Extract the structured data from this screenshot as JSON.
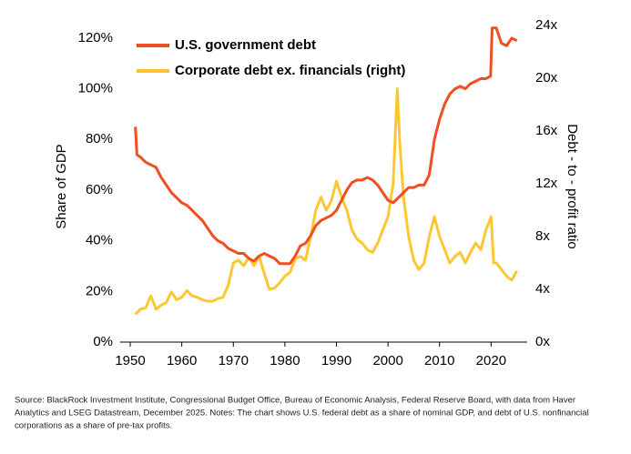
{
  "chart_data": {
    "type": "line",
    "y_label": "Share of GDP",
    "y2_label": "Debt - to - profit ratio",
    "note": [
      "Source: BlackRock Investment Institute, Congressional Budget Office, Bureau of Economic Analysis, Federal Reserve Board, with data from Haver",
      "Analytics and LSEG Datastream, December 2025. Notes: The chart shows U.S. federal debt as a share of nominal GDP, and debt of U.S. nonfinancial",
      "corporations as a share of pre-tax profits."
    ],
    "xlim": [
      1948,
      2027
    ],
    "xticks": [
      1950,
      1960,
      1970,
      1980,
      1990,
      2000,
      2010,
      2020
    ],
    "ylim": [
      0,
      125
    ],
    "yticks": [
      {
        "value": 0,
        "label": "0%"
      },
      {
        "value": 20,
        "label": "20%"
      },
      {
        "value": 40,
        "label": "40%"
      },
      {
        "value": 60,
        "label": "60%"
      },
      {
        "value": 80,
        "label": "80%"
      },
      {
        "value": 100,
        "label": "100%"
      },
      {
        "value": 120,
        "label": "120%"
      }
    ],
    "y2lim": [
      0,
      24
    ],
    "y2ticks": [
      {
        "value": 0,
        "label": "0x"
      },
      {
        "value": 4,
        "label": "4x"
      },
      {
        "value": 8,
        "label": "8x"
      },
      {
        "value": 12,
        "label": "12x"
      },
      {
        "value": 16,
        "label": "16x"
      },
      {
        "value": 20,
        "label": "20x"
      },
      {
        "value": 24,
        "label": "24x"
      }
    ],
    "legend": "upper left",
    "series": [
      {
        "name": "U.S. government debt",
        "color": "#f04e23",
        "x": [
          1951,
          1951.3,
          1952,
          1953,
          1954,
          1955,
          1956,
          1957,
          1958,
          1959,
          1960,
          1961,
          1962,
          1963,
          1964,
          1965,
          1966,
          1967,
          1968,
          1969,
          1970,
          1971,
          1972,
          1973,
          1974,
          1975,
          1976,
          1977,
          1978,
          1979,
          1980,
          1981,
          1982,
          1983,
          1984,
          1985,
          1986,
          1987,
          1988,
          1989,
          1990,
          1991,
          1992,
          1993,
          1994,
          1995,
          1996,
          1997,
          1998,
          1999,
          2000,
          2001,
          2002,
          2003,
          2004,
          2005,
          2006,
          2007,
          2008,
          2009,
          2010,
          2011,
          2012,
          2013,
          2014,
          2015,
          2016,
          2017,
          2018,
          2019,
          2019.9,
          2020.2,
          2021,
          2022,
          2023,
          2024,
          2025
        ],
        "values": [
          85,
          74,
          73,
          71,
          70,
          69,
          65,
          62,
          59,
          57,
          55,
          54,
          52,
          50,
          48,
          45,
          42,
          40,
          39,
          37,
          36,
          35,
          35,
          33,
          32,
          34,
          35,
          34,
          33,
          31,
          31,
          31,
          34,
          38,
          39,
          42,
          46,
          48,
          49,
          50,
          52,
          56,
          60,
          63,
          64,
          64,
          65,
          64,
          62,
          59,
          56,
          55,
          57,
          59,
          61,
          61,
          62,
          62,
          66,
          80,
          88,
          94,
          98,
          100,
          101,
          100,
          102,
          103,
          104,
          104,
          105,
          124,
          124,
          118,
          117,
          120,
          119
        ]
      },
      {
        "name": "Corporate debt ex. financials (right)",
        "color": "#fdc733",
        "axis": "y2",
        "x": [
          1951,
          1952,
          1953,
          1954,
          1955,
          1956,
          1957,
          1958,
          1959,
          1960,
          1961,
          1962,
          1963,
          1964,
          1965,
          1966,
          1967,
          1968,
          1969,
          1970,
          1971,
          1972,
          1973,
          1974,
          1975,
          1976,
          1977,
          1978,
          1979,
          1980,
          1981,
          1982,
          1983,
          1984,
          1985,
          1986,
          1987,
          1988,
          1989,
          1990,
          1991,
          1992,
          1993,
          1994,
          1995,
          1996,
          1997,
          1998,
          1999,
          2000,
          2001,
          2001.8,
          2002.3,
          2003,
          2004,
          2005,
          2006,
          2007,
          2008,
          2009,
          2010,
          2011,
          2012,
          2013,
          2014,
          2015,
          2016,
          2017,
          2018,
          2019,
          2020,
          2020.5,
          2021,
          2022,
          2023,
          2024,
          2025
        ],
        "values": [
          2.1,
          2.5,
          2.6,
          3.5,
          2.5,
          2.8,
          3.0,
          3.8,
          3.2,
          3.4,
          3.9,
          3.5,
          3.4,
          3.2,
          3.1,
          3.1,
          3.3,
          3.4,
          4.3,
          6.0,
          6.2,
          5.8,
          6.4,
          5.8,
          6.5,
          5.2,
          4.0,
          4.1,
          4.5,
          5.0,
          5.3,
          6.3,
          6.5,
          6.2,
          8.0,
          10.0,
          11.0,
          10.0,
          10.7,
          12.2,
          11.0,
          10.0,
          8.5,
          7.8,
          7.5,
          7.0,
          6.8,
          7.5,
          8.5,
          9.5,
          12.0,
          19.2,
          15.0,
          11.0,
          8.0,
          6.2,
          5.5,
          6.0,
          8.0,
          9.5,
          8.0,
          7.0,
          6.0,
          6.5,
          6.8,
          6.0,
          6.8,
          7.5,
          7.0,
          8.5,
          9.5,
          6.0,
          6.0,
          5.5,
          5.0,
          4.7,
          5.4
        ]
      }
    ]
  }
}
